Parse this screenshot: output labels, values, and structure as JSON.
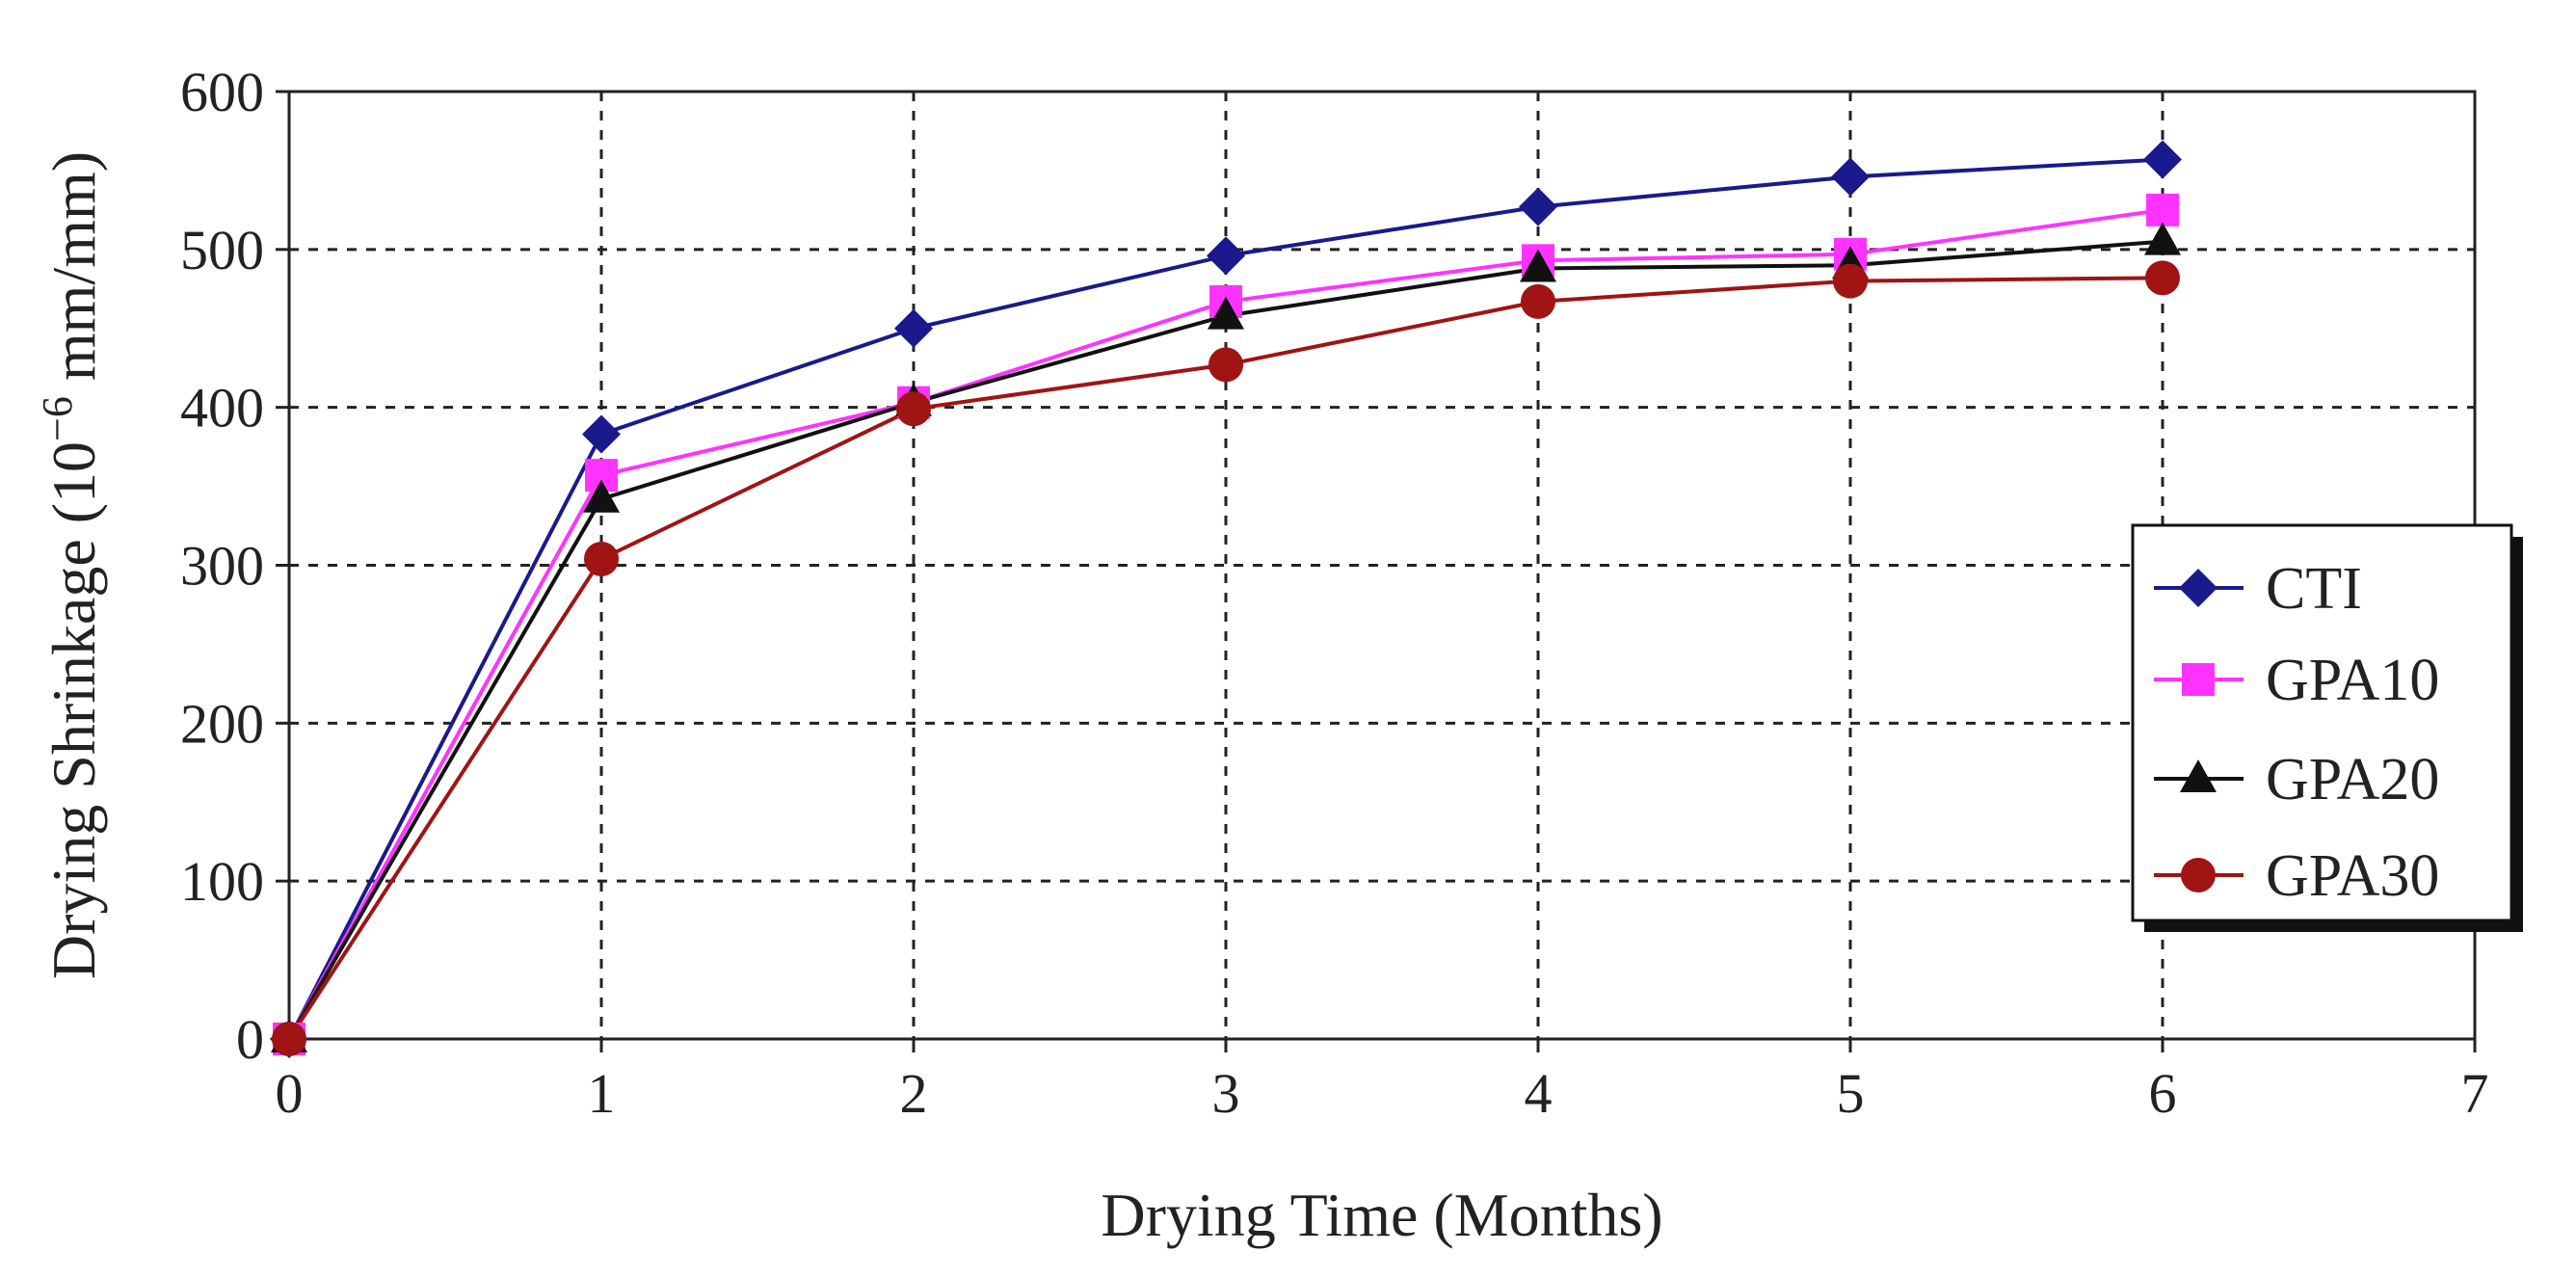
{
  "chart_data": {
    "type": "line",
    "title": "",
    "xlabel": "Drying Time (Months)",
    "ylabel_main": "Drying Shrinkage (10",
    "ylabel_sup": "−6",
    "ylabel_tail": " mm/mm)",
    "xlim": [
      0,
      7
    ],
    "ylim": [
      0,
      600
    ],
    "x_ticks": [
      0,
      1,
      2,
      3,
      4,
      5,
      6,
      7
    ],
    "y_ticks": [
      0,
      100,
      200,
      300,
      400,
      500,
      600
    ],
    "x_tick_labels": [
      "0",
      "1",
      "2",
      "3",
      "4",
      "5",
      "6",
      "7"
    ],
    "y_tick_labels": [
      "0",
      "100",
      "200",
      "300",
      "400",
      "500",
      "600"
    ],
    "grid": true,
    "legend_position": "right",
    "x": [
      0,
      1,
      2,
      3,
      4,
      5,
      6
    ],
    "series": [
      {
        "name": "CTI",
        "color": "#1a1a8c",
        "marker": "diamond",
        "values": [
          0,
          383,
          450,
          496,
          527,
          546,
          557
        ]
      },
      {
        "name": "GPA10",
        "color": "#ff33ff",
        "marker": "square",
        "values": [
          0,
          357,
          403,
          467,
          493,
          497,
          525
        ]
      },
      {
        "name": "GPA20",
        "color": "#111111",
        "marker": "triangle",
        "values": [
          0,
          342,
          403,
          458,
          488,
          490,
          505
        ]
      },
      {
        "name": "GPA30",
        "color": "#a01414",
        "marker": "circle",
        "values": [
          0,
          304,
          399,
          427,
          467,
          480,
          482
        ]
      }
    ]
  }
}
